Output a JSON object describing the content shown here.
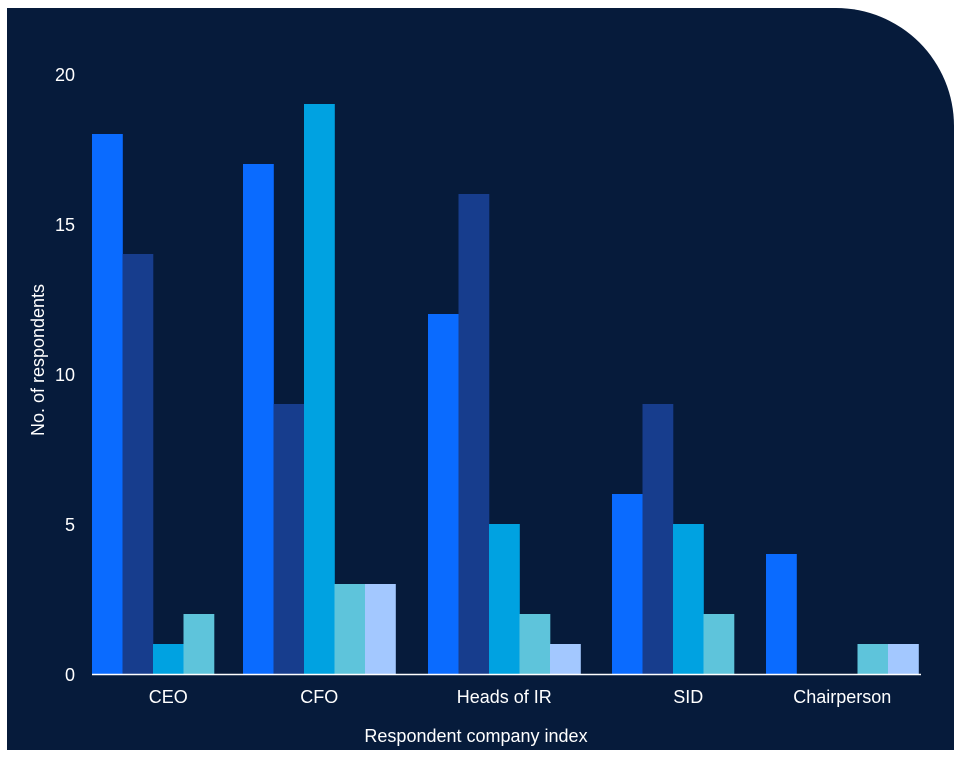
{
  "chart_data": {
    "type": "bar",
    "title": "",
    "xlabel": "Respondent company index",
    "ylabel": "No. of respondents",
    "ylim": [
      0,
      20
    ],
    "yticks": [
      0,
      5,
      10,
      15,
      20
    ],
    "categories": [
      "CEO",
      "CFO",
      "Heads of IR",
      "SID",
      "Chairperson"
    ],
    "series": [
      {
        "color": "#0a6bff",
        "values": [
          18,
          17,
          12,
          6,
          4
        ]
      },
      {
        "color": "#173d8d",
        "values": [
          14,
          9,
          16,
          9,
          0
        ]
      },
      {
        "color": "#00a2e1",
        "values": [
          1,
          19,
          5,
          5,
          0
        ]
      },
      {
        "color": "#5ec4db",
        "values": [
          2,
          3,
          2,
          2,
          1
        ]
      },
      {
        "color": "#a3c8ff",
        "values": [
          0,
          3,
          1,
          0,
          1
        ]
      }
    ],
    "grid": false,
    "legend": "none",
    "background": "#061b3b"
  }
}
